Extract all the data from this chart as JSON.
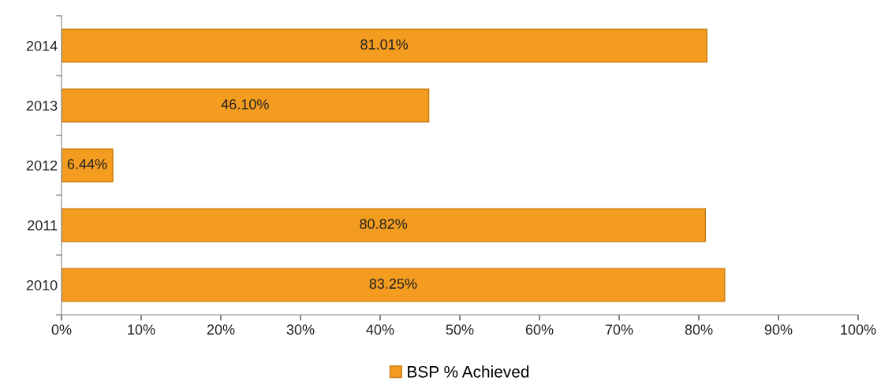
{
  "chart_data": {
    "type": "bar",
    "orientation": "horizontal",
    "categories": [
      "2014",
      "2013",
      "2012",
      "2011",
      "2010"
    ],
    "series": [
      {
        "name": "BSP % Achieved",
        "color": "#f39c1f",
        "values": [
          81.01,
          46.1,
          6.44,
          80.82,
          83.25
        ],
        "value_labels": [
          "81.01%",
          "46.10%",
          "6.44%",
          "80.82%",
          "83.25%"
        ]
      }
    ],
    "xlim": [
      0,
      100
    ],
    "xticks": [
      {
        "value": 0,
        "label": "0%"
      },
      {
        "value": 10,
        "label": "10%"
      },
      {
        "value": 20,
        "label": "20%"
      },
      {
        "value": 30,
        "label": "30%"
      },
      {
        "value": 40,
        "label": "40%"
      },
      {
        "value": 50,
        "label": "50%"
      },
      {
        "value": 60,
        "label": "60%"
      },
      {
        "value": 70,
        "label": "70%"
      },
      {
        "value": 80,
        "label": "80%"
      },
      {
        "value": 90,
        "label": "90%"
      },
      {
        "value": 100,
        "label": "100%"
      }
    ],
    "grid": false,
    "legend": "bottom"
  }
}
